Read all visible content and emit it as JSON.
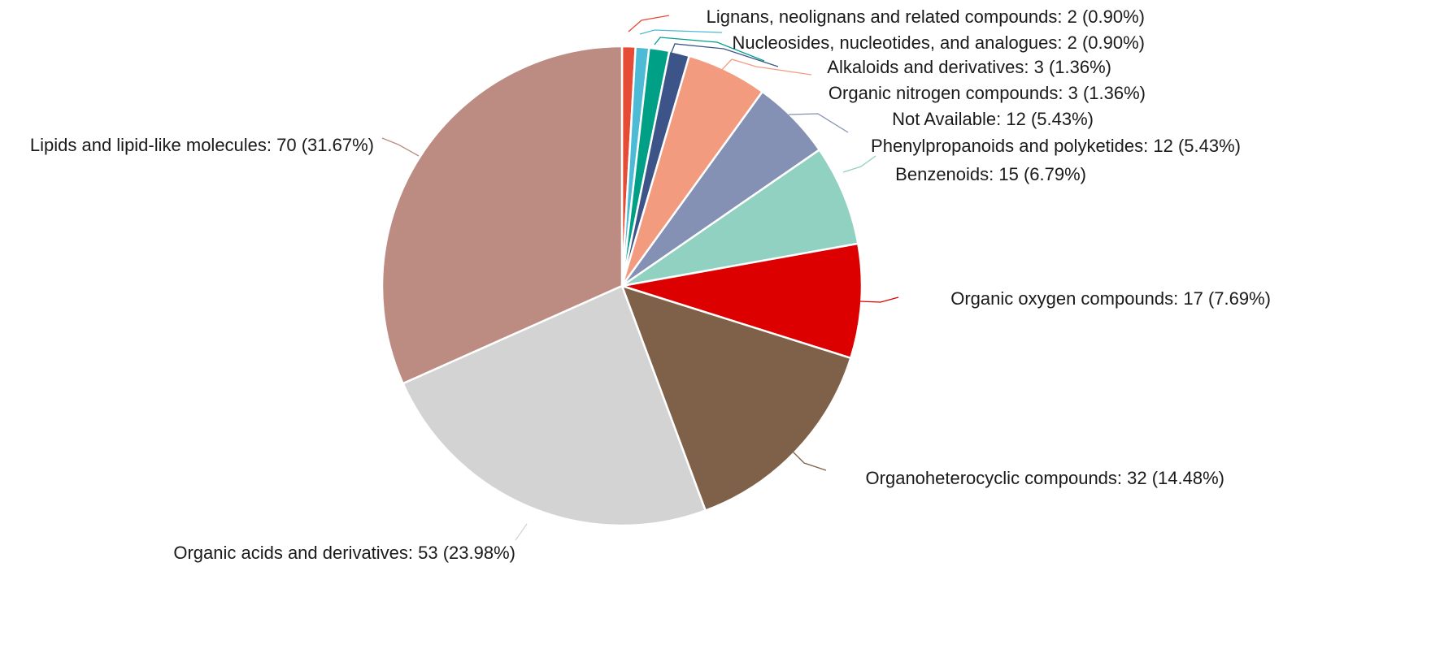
{
  "chart_data": {
    "type": "pie",
    "start_angle_deg": 0,
    "direction": "clockwise",
    "slices": [
      {
        "label": "Lignans, neolignans and related compounds",
        "value": 2,
        "percent": "0.90%",
        "color": "#E64B35"
      },
      {
        "label": "Nucleosides, nucleotides, and analogues",
        "value": 2,
        "percent": "0.90%",
        "color": "#4DBBD5"
      },
      {
        "label": "Alkaloids and derivatives",
        "value": 3,
        "percent": "1.36%",
        "color": "#00A087"
      },
      {
        "label": "Organic nitrogen compounds",
        "value": 3,
        "percent": "1.36%",
        "color": "#3C5488"
      },
      {
        "label": "Not Available",
        "value": 12,
        "percent": "5.43%",
        "color": "#F39B7F"
      },
      {
        "label": "Phenylpropanoids and polyketides",
        "value": 12,
        "percent": "5.43%",
        "color": "#8491B4"
      },
      {
        "label": "Benzenoids",
        "value": 15,
        "percent": "6.79%",
        "color": "#91D1C2"
      },
      {
        "label": "Organic oxygen compounds",
        "value": 17,
        "percent": "7.69%",
        "color": "#DC0000"
      },
      {
        "label": "Organoheterocyclic compounds",
        "value": 32,
        "percent": "14.48%",
        "color": "#7E6148"
      },
      {
        "label": "Organic acids and derivatives",
        "value": 53,
        "percent": "23.98%",
        "color": "#D3D3D3"
      },
      {
        "label": "Lipids and lipid-like molecules",
        "value": 70,
        "percent": "31.67%",
        "color": "#BC8B82"
      }
    ],
    "legend": "none"
  }
}
